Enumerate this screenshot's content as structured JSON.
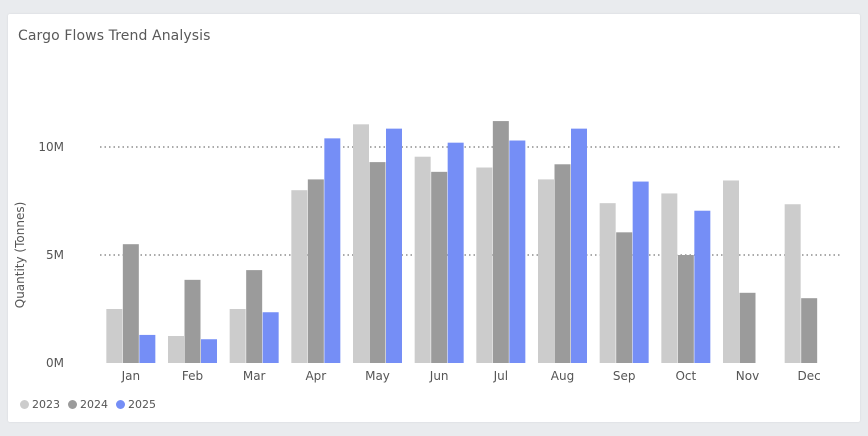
{
  "chart_data": {
    "type": "bar",
    "title": "Cargo Flows Trend Analysis",
    "ylabel": "Quantity (Tonnes)",
    "xlabel": "",
    "categories": [
      "Jan",
      "Feb",
      "Mar",
      "Apr",
      "May",
      "Jun",
      "Jul",
      "Aug",
      "Sep",
      "Oct",
      "Nov",
      "Dec"
    ],
    "ylim": [
      0,
      12500000
    ],
    "yticks": [
      0,
      5000000,
      10000000
    ],
    "ytick_labels": [
      "0M",
      "5M",
      "10M"
    ],
    "grid": true,
    "legend_position": "bottom-left",
    "series": [
      {
        "name": "2023",
        "color": "#cccccc",
        "values": [
          2500000,
          1250000,
          2500000,
          8000000,
          11050000,
          9550000,
          9050000,
          8500000,
          7400000,
          7850000,
          8450000,
          7350000
        ]
      },
      {
        "name": "2024",
        "color": "#9b9b9b",
        "values": [
          5500000,
          3850000,
          4300000,
          8500000,
          9300000,
          8850000,
          11200000,
          9200000,
          6050000,
          5000000,
          3250000,
          3000000
        ]
      },
      {
        "name": "2025",
        "color": "#758ef6",
        "values": [
          1300000,
          1100000,
          2350000,
          10400000,
          10850000,
          10200000,
          10300000,
          10850000,
          8400000,
          7050000,
          null,
          null
        ]
      }
    ]
  }
}
